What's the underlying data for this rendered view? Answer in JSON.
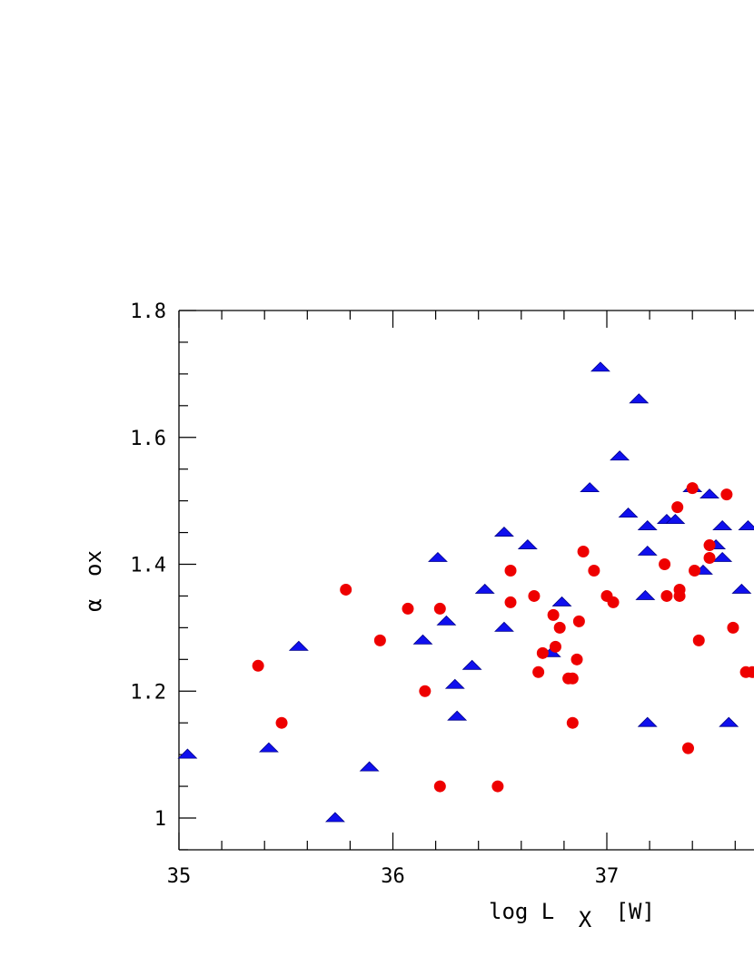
{
  "chart_data": {
    "type": "scatter",
    "title": "",
    "xlabel": {
      "main": "log L",
      "subscript": "X",
      "unit": "[W]"
    },
    "ylabel": {
      "main": "α",
      "subscript": "ox"
    },
    "xlim": [
      35,
      38.8
    ],
    "ylim": [
      0.95,
      1.8
    ],
    "x_ticks": [
      {
        "value": 35,
        "label": "35"
      },
      {
        "value": 36,
        "label": "36"
      },
      {
        "value": 37,
        "label": "37"
      }
    ],
    "y_ticks": [
      {
        "value": 1.0,
        "label": "1"
      },
      {
        "value": 1.2,
        "label": "1.2"
      },
      {
        "value": 1.4,
        "label": "1.4"
      },
      {
        "value": 1.6,
        "label": "1.6"
      },
      {
        "value": 1.8,
        "label": "1.8"
      }
    ],
    "grid": false,
    "series": [
      {
        "marker": "triangle",
        "color": "#1010ee",
        "points": [
          [
            35.04,
            1.1
          ],
          [
            35.42,
            1.11
          ],
          [
            35.56,
            1.27
          ],
          [
            35.73,
            1.0
          ],
          [
            35.89,
            1.08
          ],
          [
            36.14,
            1.28
          ],
          [
            36.21,
            1.41
          ],
          [
            36.25,
            1.31
          ],
          [
            36.29,
            1.21
          ],
          [
            36.3,
            1.16
          ],
          [
            36.37,
            1.24
          ],
          [
            36.43,
            1.36
          ],
          [
            36.52,
            1.3
          ],
          [
            36.52,
            1.45
          ],
          [
            36.63,
            1.43
          ],
          [
            36.74,
            1.26
          ],
          [
            36.79,
            1.34
          ],
          [
            36.92,
            1.52
          ],
          [
            36.97,
            1.71
          ],
          [
            37.06,
            1.57
          ],
          [
            37.1,
            1.48
          ],
          [
            37.15,
            1.66
          ],
          [
            37.18,
            1.35
          ],
          [
            37.19,
            1.42
          ],
          [
            37.19,
            1.46
          ],
          [
            37.19,
            1.15
          ],
          [
            37.28,
            1.47
          ],
          [
            37.32,
            1.47
          ],
          [
            37.4,
            1.52
          ],
          [
            37.45,
            1.39
          ],
          [
            37.48,
            1.51
          ],
          [
            37.51,
            1.43
          ],
          [
            37.54,
            1.46
          ],
          [
            37.54,
            1.41
          ],
          [
            37.57,
            1.15
          ],
          [
            37.63,
            1.36
          ],
          [
            37.66,
            1.46
          ]
        ]
      },
      {
        "marker": "circle",
        "color": "#ee0000",
        "points": [
          [
            35.37,
            1.24
          ],
          [
            35.48,
            1.15
          ],
          [
            35.78,
            1.36
          ],
          [
            35.94,
            1.28
          ],
          [
            36.07,
            1.33
          ],
          [
            36.15,
            1.2
          ],
          [
            36.22,
            1.33
          ],
          [
            36.22,
            1.05
          ],
          [
            36.49,
            1.05
          ],
          [
            36.55,
            1.39
          ],
          [
            36.55,
            1.34
          ],
          [
            36.66,
            1.35
          ],
          [
            36.68,
            1.23
          ],
          [
            36.7,
            1.26
          ],
          [
            36.75,
            1.32
          ],
          [
            36.76,
            1.27
          ],
          [
            36.78,
            1.3
          ],
          [
            36.82,
            1.22
          ],
          [
            36.84,
            1.22
          ],
          [
            36.84,
            1.15
          ],
          [
            36.86,
            1.25
          ],
          [
            36.87,
            1.31
          ],
          [
            36.89,
            1.42
          ],
          [
            36.94,
            1.39
          ],
          [
            37.0,
            1.35
          ],
          [
            37.03,
            1.34
          ],
          [
            37.27,
            1.4
          ],
          [
            37.28,
            1.35
          ],
          [
            37.33,
            1.49
          ],
          [
            37.34,
            1.36
          ],
          [
            37.34,
            1.35
          ],
          [
            37.38,
            1.11
          ],
          [
            37.4,
            1.52
          ],
          [
            37.41,
            1.39
          ],
          [
            37.43,
            1.28
          ],
          [
            37.48,
            1.43
          ],
          [
            37.48,
            1.41
          ],
          [
            37.56,
            1.51
          ],
          [
            37.59,
            1.3
          ],
          [
            37.65,
            1.23
          ],
          [
            37.68,
            1.23
          ]
        ]
      }
    ]
  }
}
